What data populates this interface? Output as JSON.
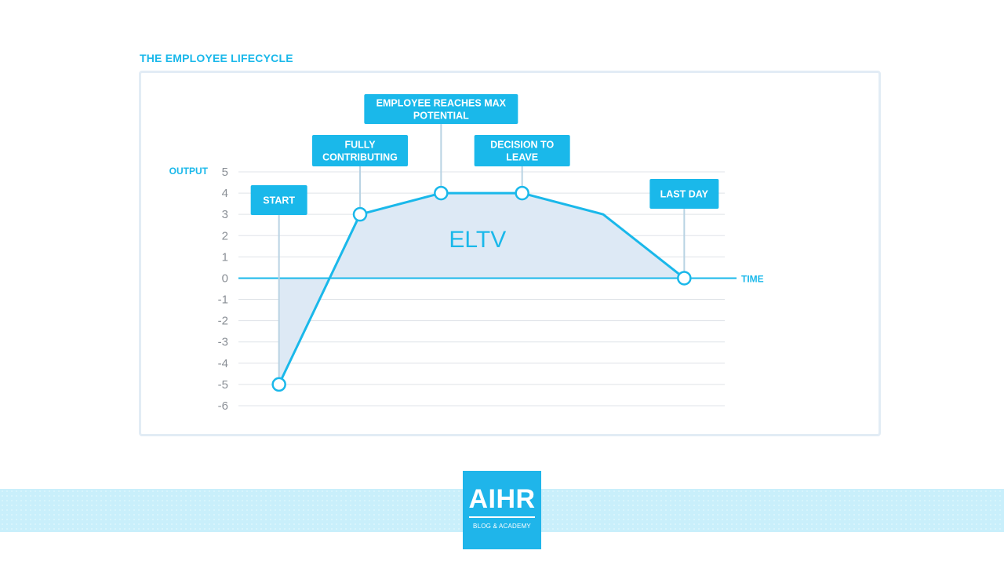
{
  "header": {
    "title": "THE EMPLOYEE LIFECYCLE"
  },
  "colors": {
    "accent": "#1ab8ea",
    "area": "#dde9f5",
    "grid": "#dfe3e8",
    "tick": "#8a8f96"
  },
  "chart_data": {
    "type": "area",
    "title": "",
    "ylabel": "OUTPUT",
    "xlabel": "TIME",
    "ylim": [
      -6,
      5
    ],
    "yticks": [
      "5",
      "4",
      "3",
      "2",
      "1",
      "0",
      "-1",
      "-2",
      "-3",
      "-4",
      "-5",
      "-6"
    ],
    "grid": true,
    "x": [
      0.5,
      1.5,
      2.5,
      3.5,
      4.5,
      5.5
    ],
    "xlim": [
      0,
      6
    ],
    "y": [
      -5,
      3,
      4,
      4,
      3,
      0
    ],
    "area_label": "ELTV",
    "milestones": [
      {
        "label_lines": [
          "START"
        ],
        "x": 0.5,
        "y": -5
      },
      {
        "label_lines": [
          "FULLY",
          "CONTRIBUTING"
        ],
        "x": 1.5,
        "y": 3
      },
      {
        "label_lines": [
          "EMPLOYEE REACHES MAX",
          "POTENTIAL"
        ],
        "x": 2.5,
        "y": 4
      },
      {
        "label_lines": [
          "DECISION TO",
          "LEAVE"
        ],
        "x": 3.5,
        "y": 4
      },
      {
        "label_lines": [
          "LAST DAY"
        ],
        "x": 5.5,
        "y": 0
      }
    ]
  },
  "logo": {
    "brand": "AIHR",
    "tagline": "BLOG & ACADEMY"
  }
}
